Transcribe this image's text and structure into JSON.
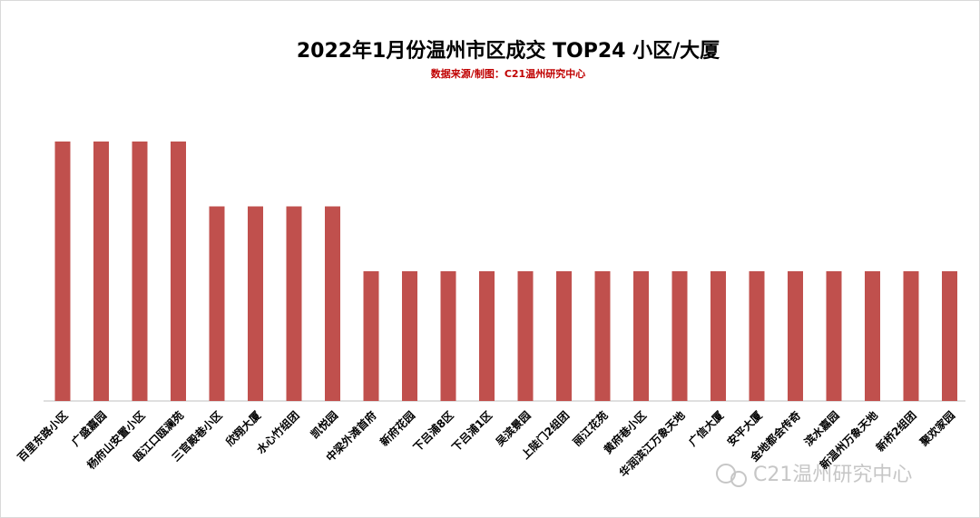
{
  "chart_data": {
    "type": "bar",
    "title": "2022年1月份温州市区成交 TOP24 小区/大厦",
    "subtitle": "数据来源/制图：C21温州研究中心",
    "watermark": "C21温州研究中心",
    "color": "#c0504d",
    "categories": [
      "百里东路小区",
      "广盛嘉园",
      "杨府山安置小区",
      "瓯江口瓯澜苑",
      "三官殿巷小区",
      "欣翔大厦",
      "水心竹组团",
      "凯悦园",
      "中梁外滩首府",
      "新府花园",
      "下吕浦8区",
      "下吕浦1区",
      "吴滨景园",
      "上陡门2组团",
      "丽江花苑",
      "黄府巷小区",
      "华润滨江万象天地",
      "广信大厦",
      "安平大厦",
      "金地都会传奇",
      "滨水嘉园",
      "新温州万象天地",
      "新桥2组团",
      "聚欢家园"
    ],
    "values": [
      4,
      4,
      4,
      4,
      3,
      3,
      3,
      3,
      2,
      2,
      2,
      2,
      2,
      2,
      2,
      2,
      2,
      2,
      2,
      2,
      2,
      2,
      2,
      2
    ]
  }
}
